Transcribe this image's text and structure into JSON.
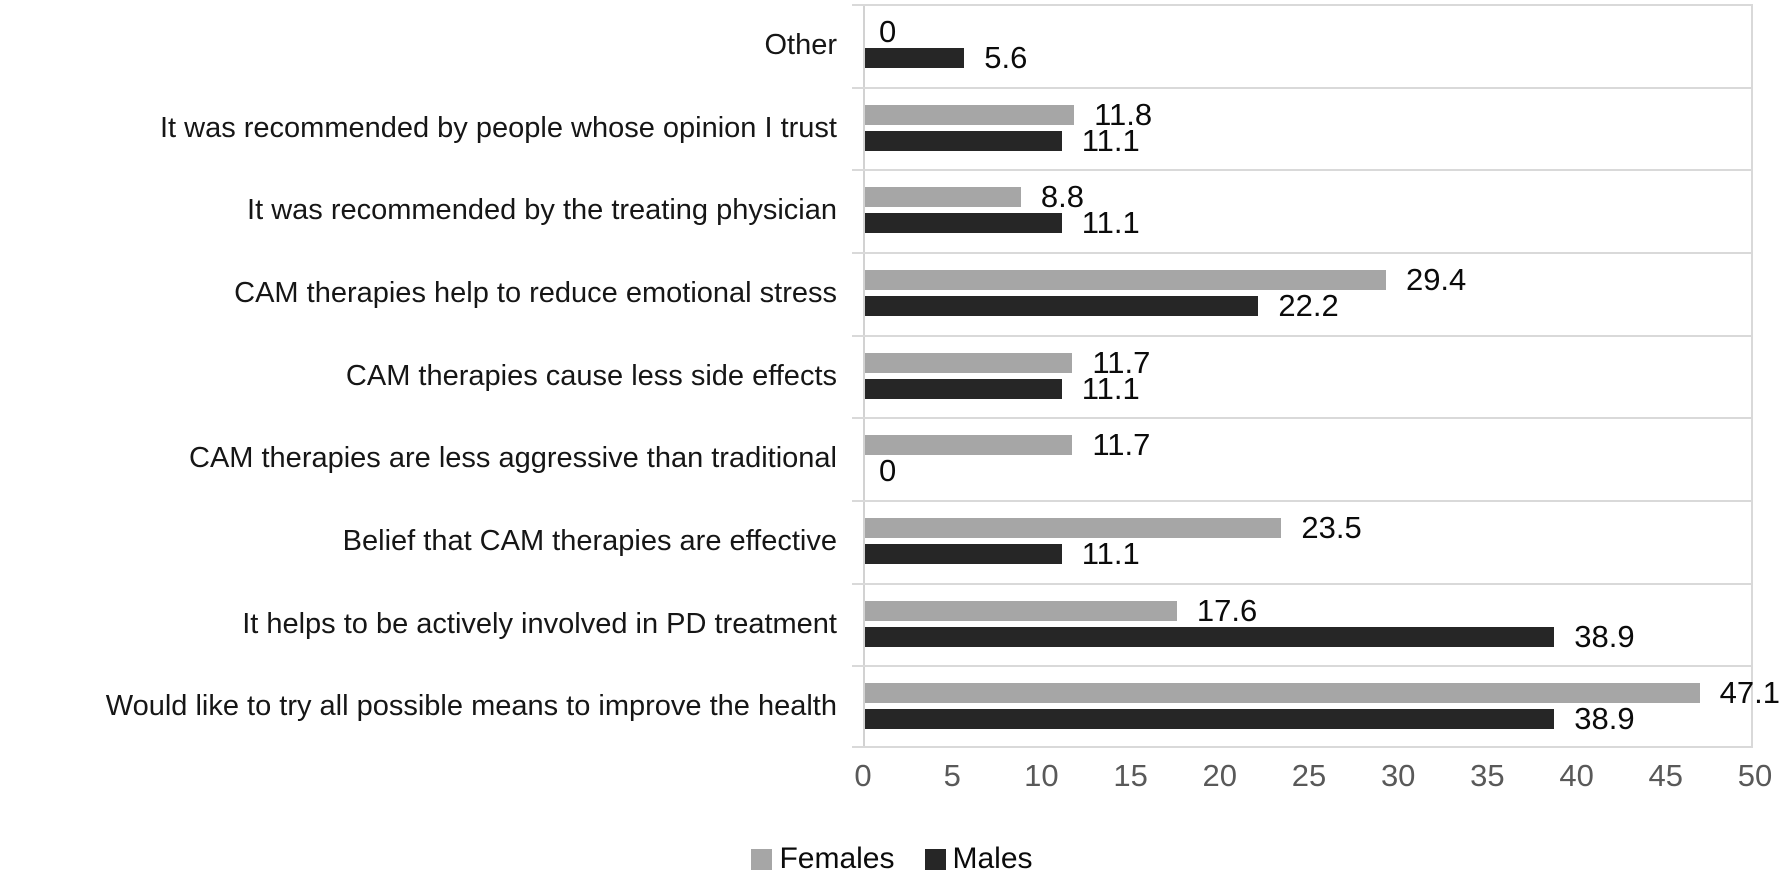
{
  "chart_data": {
    "type": "bar",
    "orientation": "horizontal",
    "title": "",
    "xlabel": "",
    "ylabel": "",
    "categories": [
      "Other",
      "It was recommended by people whose opinion I trust",
      "It was recommended by the treating physician",
      "CAM therapies help to reduce emotional stress",
      "CAM therapies cause less side effects",
      "CAM therapies are less aggressive than traditional",
      "Belief that CAM therapies are effective",
      "It helps to be actively involved in PD treatment",
      "Would like to try all possible means to improve the health"
    ],
    "series": [
      {
        "name": "Females",
        "color": "#a6a6a6",
        "values": [
          0,
          11.8,
          8.8,
          29.4,
          11.7,
          11.7,
          23.5,
          17.6,
          47.1
        ],
        "labels": [
          "0",
          "11.8",
          "8.8",
          "29.4",
          "11.7",
          "11.7",
          "23.5",
          "17.6",
          "47.1"
        ]
      },
      {
        "name": "Males",
        "color": "#262626",
        "values": [
          5.6,
          11.1,
          11.1,
          22.2,
          11.1,
          0,
          11.1,
          38.9,
          38.9
        ],
        "labels": [
          "5.6",
          "11.1",
          "11.1",
          "22.2",
          "11.1",
          "0",
          "11.1",
          "38.9",
          "38.9"
        ]
      }
    ],
    "xlim": [
      0,
      50
    ],
    "xticks": [
      "0",
      "5",
      "10",
      "15",
      "20",
      "25",
      "30",
      "35",
      "40",
      "45",
      "50"
    ],
    "data_labels": true,
    "grid": "category-separators",
    "legend_position": "bottom-center",
    "colors": {
      "gridline": "#d9d9d9",
      "axis_line": "#d2d2d2",
      "tick_text": "#595959",
      "label_text": "#0b0b0b"
    }
  }
}
